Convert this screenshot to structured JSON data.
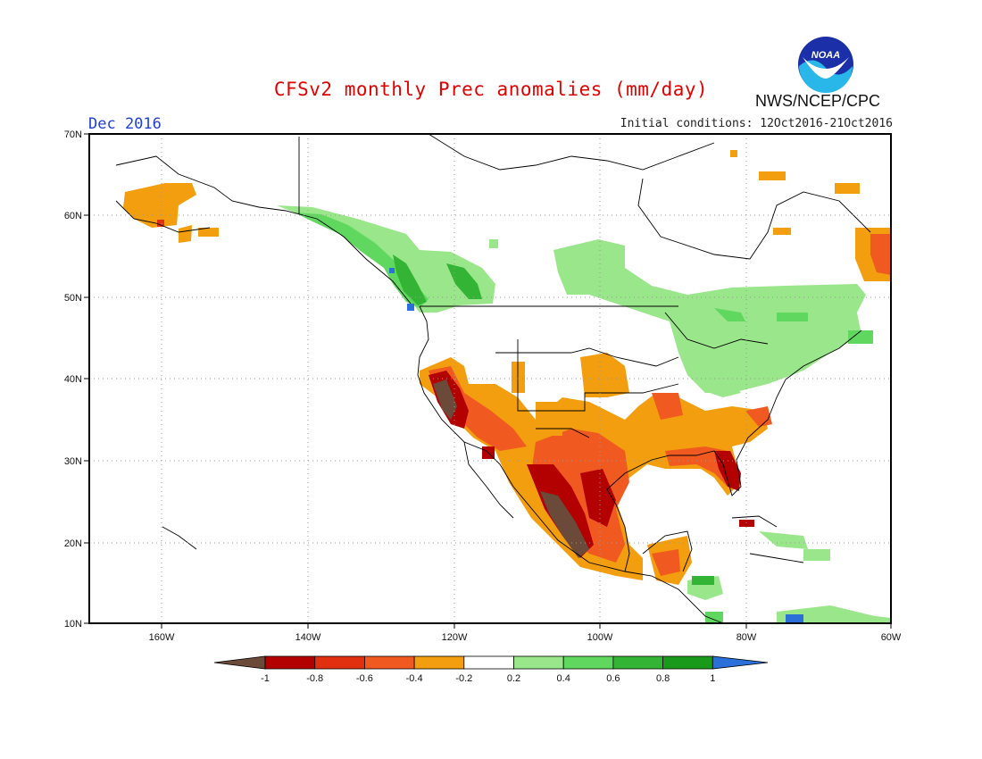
{
  "header": {
    "title": "CFSv2 monthly Prec anomalies (mm/day)",
    "agency": "NWS/NCEP/CPC",
    "logo_text": "NOAA",
    "valid_month": "Dec 2016",
    "initial_conditions": "Initial conditions: 12Oct2016-21Oct2016"
  },
  "map": {
    "lat_labels": [
      "70N",
      "60N",
      "50N",
      "40N",
      "30N",
      "20N",
      "10N"
    ],
    "lon_labels": [
      "160W",
      "140W",
      "120W",
      "100W",
      "80W",
      "60W"
    ],
    "lat_range": [
      10,
      70
    ],
    "lon_range": [
      -170,
      -60
    ],
    "gridlines": "dotted",
    "anomaly_regions": [
      {
        "region": "Southern California / Baja",
        "class": "< -1"
      },
      {
        "region": "Western Mexico coast",
        "class": "< -1"
      },
      {
        "region": "Southwest US / Northern Mexico",
        "class": "-0.8 to -0.4"
      },
      {
        "region": "Gulf Coast / Florida",
        "class": "-0.8 to -0.4"
      },
      {
        "region": "Pacific Northwest / British Columbia",
        "class": "0.4 to 0.8"
      },
      {
        "region": "Great Lakes / Northeast / Quebec",
        "class": "0.2 to 0.4"
      },
      {
        "region": "Western Alaska",
        "class": "-0.4 to -0.2"
      },
      {
        "region": "Labrador",
        "class": "-0.6 to -0.2"
      }
    ]
  },
  "legend": {
    "ticks": [
      "-1",
      "-0.8",
      "-0.6",
      "-0.4",
      "-0.2",
      "0.2",
      "0.4",
      "0.6",
      "0.8",
      "1"
    ],
    "colors": [
      "#6b4a3a",
      "#b30000",
      "#e03010",
      "#f05a20",
      "#f29e0e",
      "#ffffff",
      "#9ae68a",
      "#60d860",
      "#34b434",
      "#1a9a1a",
      "#2a70d8"
    ]
  }
}
